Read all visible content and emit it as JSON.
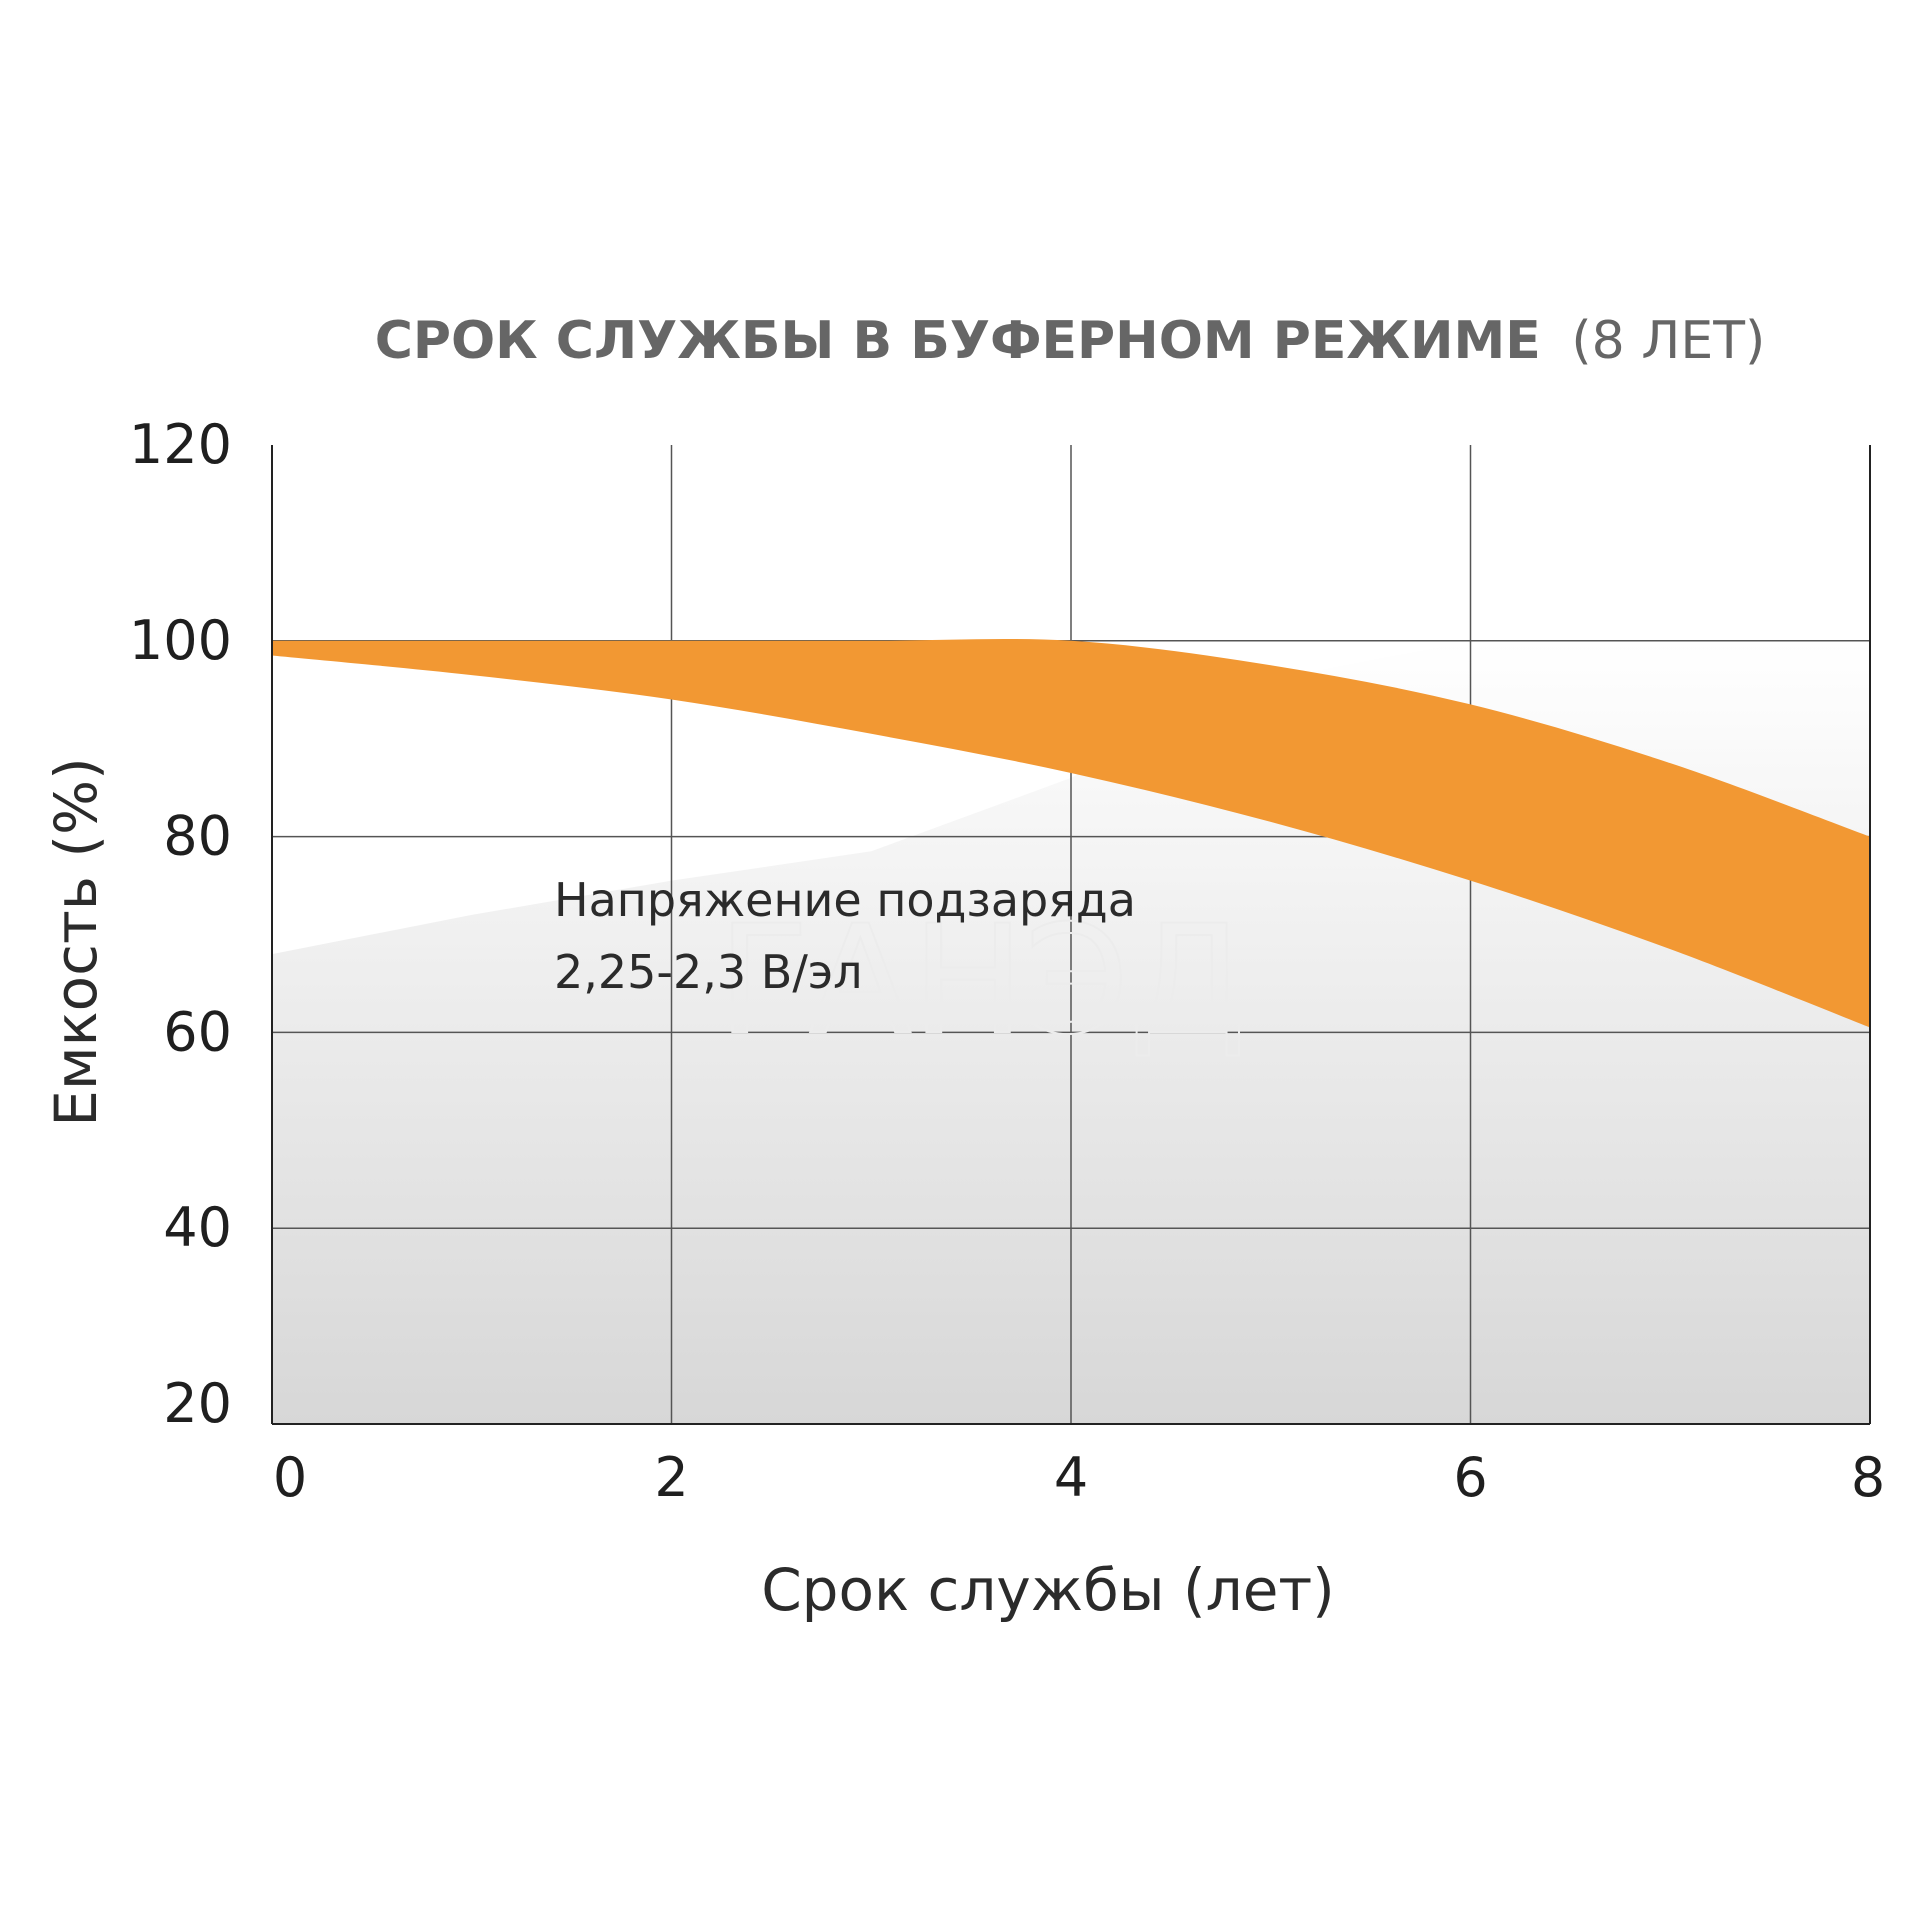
{
  "chart_data": {
    "type": "area",
    "title_bold": "СРОК СЛУЖБЫ В БУФЕРНОМ РЕЖИМЕ",
    "title_suffix": "(8 ЛЕТ)",
    "xlabel": "Срок службы (лет)",
    "ylabel": "Емкость (%)",
    "xlim": [
      0,
      8
    ],
    "ylim": [
      20,
      120
    ],
    "x_ticks": [
      "0",
      "2",
      "4",
      "6",
      "8"
    ],
    "y_ticks": [
      "20",
      "40",
      "60",
      "80",
      "100",
      "120"
    ],
    "grid": true,
    "band": {
      "x": [
        0,
        1,
        2,
        3,
        4,
        5,
        6,
        7,
        8
      ],
      "upper": [
        100,
        100,
        100,
        100,
        100,
        97.5,
        93.5,
        87.5,
        80
      ],
      "lower": [
        98.5,
        96.5,
        94,
        90.5,
        86.5,
        81.5,
        75.5,
        68.5,
        60.5
      ]
    },
    "band_color": "#F29833",
    "annotation_lines": [
      "Напряжение подзаряда",
      "2,25-2,3 В/эл"
    ],
    "watermark": "ГАНЭД"
  }
}
